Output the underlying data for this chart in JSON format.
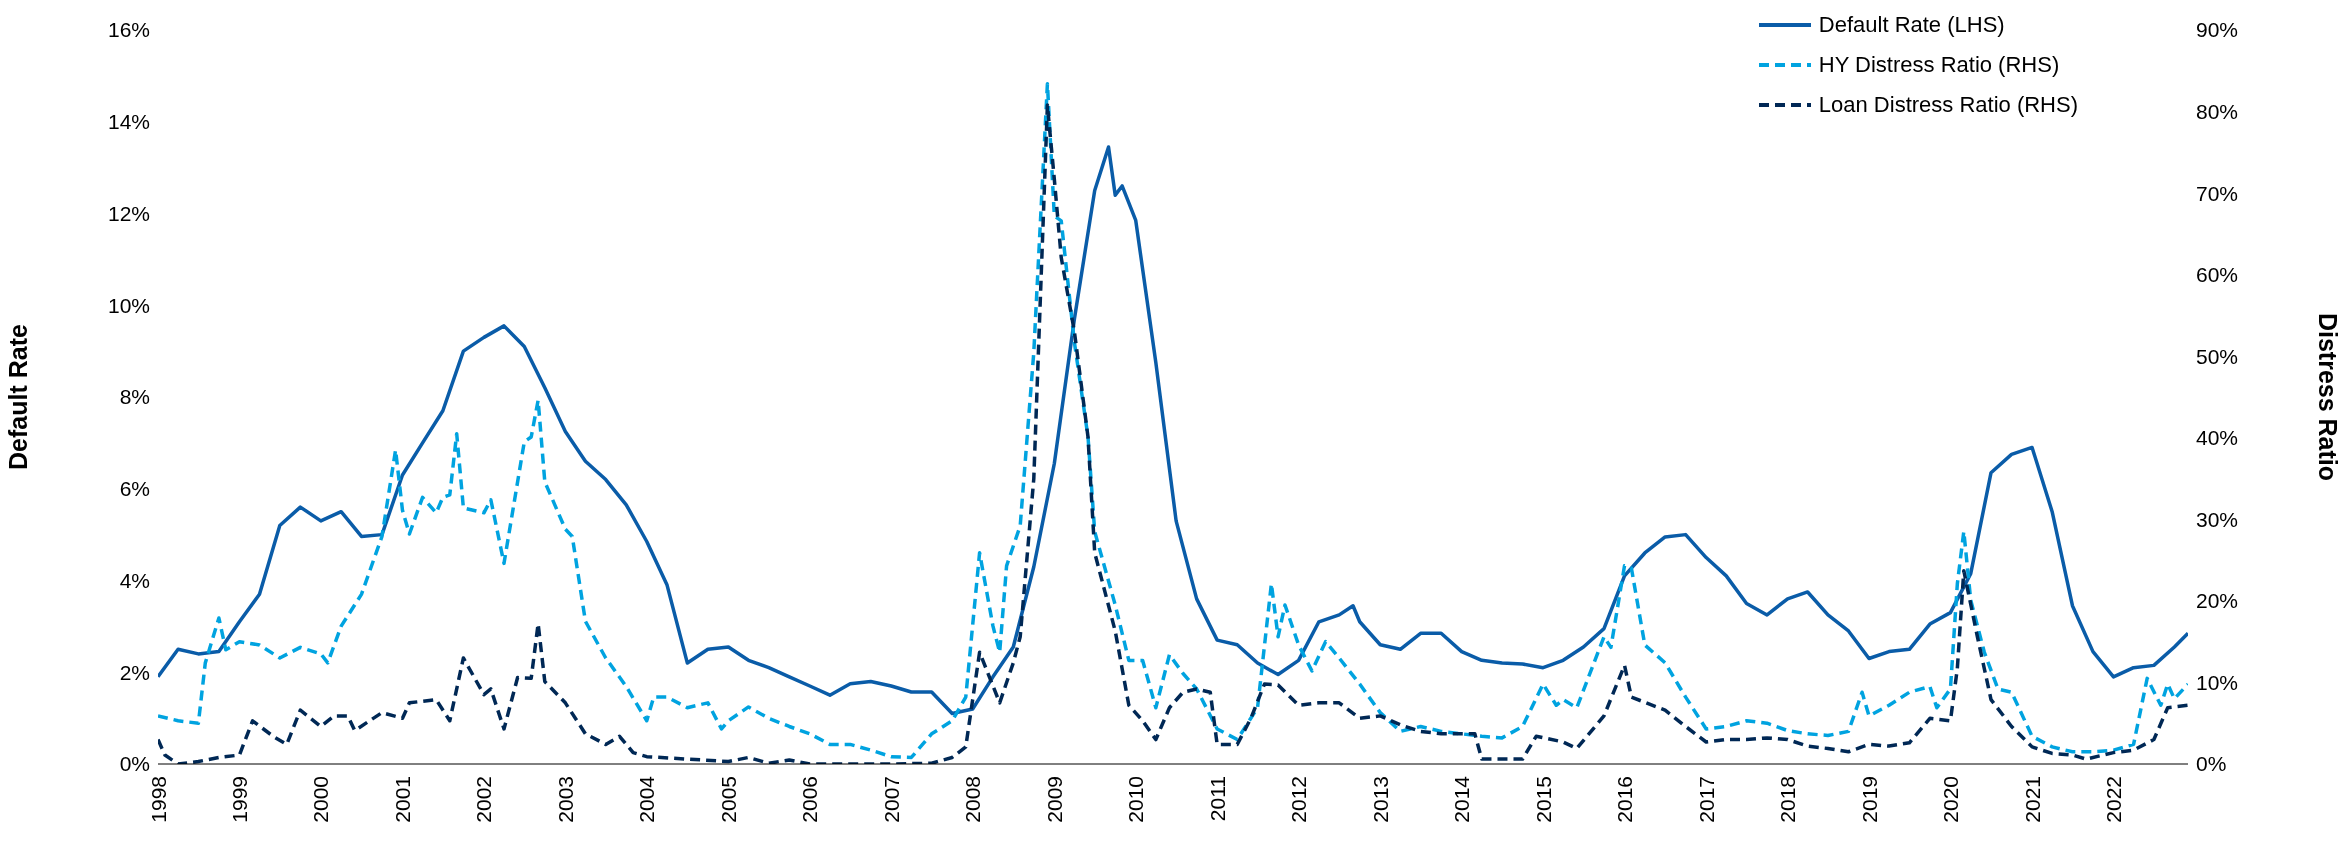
{
  "chart_data": {
    "type": "line",
    "ylabel": "Default Rate",
    "y2label": "Distress Ratio",
    "legend": "top right",
    "xlim": [
      "1998-01",
      "2022-12"
    ],
    "xticks": [
      "1998",
      "1999",
      "2000",
      "2001",
      "2002",
      "2003",
      "2004",
      "2005",
      "2006",
      "2007",
      "2008",
      "2009",
      "2010",
      "2011",
      "2012",
      "2013",
      "2014",
      "2015",
      "2016",
      "2017",
      "2018",
      "2019",
      "2020",
      "2021",
      "2022"
    ],
    "ylim": [
      0,
      16
    ],
    "yticks": [
      {
        "value": 0,
        "label": "0%"
      },
      {
        "value": 2,
        "label": "2%"
      },
      {
        "value": 4,
        "label": "4%"
      },
      {
        "value": 6,
        "label": "6%"
      },
      {
        "value": 8,
        "label": "8%"
      },
      {
        "value": 10,
        "label": "10%"
      },
      {
        "value": 12,
        "label": "12%"
      },
      {
        "value": 14,
        "label": "14%"
      },
      {
        "value": 16,
        "label": "16%"
      }
    ],
    "y2lim": [
      0,
      90
    ],
    "y2ticks": [
      {
        "value": 0,
        "label": "0%"
      },
      {
        "value": 10,
        "label": "10%"
      },
      {
        "value": 20,
        "label": "20%"
      },
      {
        "value": 30,
        "label": "30%"
      },
      {
        "value": 40,
        "label": "40%"
      },
      {
        "value": 50,
        "label": "50%"
      },
      {
        "value": 60,
        "label": "60%"
      },
      {
        "value": 70,
        "label": "70%"
      },
      {
        "value": 80,
        "label": "80%"
      },
      {
        "value": 90,
        "label": "90%"
      }
    ],
    "series": [
      {
        "name": "Default Rate (LHS)",
        "color": "#0a5ca8",
        "line_style": "solid",
        "x": [
          "1998-01",
          "1998-04",
          "1998-07",
          "1998-10",
          "1999-01",
          "1999-04",
          "1999-07",
          "1999-10",
          "2000-01",
          "2000-04",
          "2000-07",
          "2000-10",
          "2001-01",
          "2001-04",
          "2001-07",
          "2001-10",
          "2002-01",
          "2002-04",
          "2002-07",
          "2002-10",
          "2003-01",
          "2003-04",
          "2003-07",
          "2003-10",
          "2004-01",
          "2004-04",
          "2004-07",
          "2004-10",
          "2005-01",
          "2005-04",
          "2005-07",
          "2005-10",
          "2006-01",
          "2006-04",
          "2006-07",
          "2006-10",
          "2007-01",
          "2007-04",
          "2007-07",
          "2007-10",
          "2008-01",
          "2008-04",
          "2008-07",
          "2008-10",
          "2009-01",
          "2009-04",
          "2009-07",
          "2009-09",
          "2009-10",
          "2009-11",
          "2010-01",
          "2010-04",
          "2010-07",
          "2010-10",
          "2011-01",
          "2011-04",
          "2011-07",
          "2011-10",
          "2012-01",
          "2012-04",
          "2012-07",
          "2012-09",
          "2012-10",
          "2013-01",
          "2013-04",
          "2013-07",
          "2013-10",
          "2014-01",
          "2014-04",
          "2014-07",
          "2014-10",
          "2015-01",
          "2015-04",
          "2015-07",
          "2015-10",
          "2016-01",
          "2016-04",
          "2016-07",
          "2016-10",
          "2017-01",
          "2017-04",
          "2017-07",
          "2017-10",
          "2018-01",
          "2018-04",
          "2018-07",
          "2018-10",
          "2019-01",
          "2019-04",
          "2019-07",
          "2019-10",
          "2020-01",
          "2020-04",
          "2020-07",
          "2020-10",
          "2021-01",
          "2021-04",
          "2021-07",
          "2021-10",
          "2022-01",
          "2022-04",
          "2022-07",
          "2022-10",
          "2022-12"
        ],
        "values": [
          1.9,
          2.5,
          2.4,
          2.45,
          3.1,
          3.7,
          5.2,
          5.6,
          5.3,
          5.5,
          4.96,
          5.0,
          6.3,
          7.0,
          7.7,
          9.0,
          9.3,
          9.55,
          9.1,
          8.2,
          7.25,
          6.6,
          6.2,
          5.65,
          4.85,
          3.9,
          2.2,
          2.5,
          2.55,
          2.26,
          2.1,
          1.9,
          1.7,
          1.5,
          1.75,
          1.8,
          1.7,
          1.57,
          1.57,
          1.1,
          1.2,
          1.9,
          2.55,
          4.3,
          6.55,
          9.7,
          12.5,
          13.45,
          12.4,
          12.6,
          11.85,
          8.75,
          5.3,
          3.6,
          2.7,
          2.6,
          2.2,
          1.95,
          2.26,
          3.1,
          3.25,
          3.45,
          3.1,
          2.6,
          2.5,
          2.85,
          2.85,
          2.45,
          2.26,
          2.2,
          2.18,
          2.1,
          2.26,
          2.55,
          2.95,
          4.1,
          4.6,
          4.95,
          5.0,
          4.5,
          4.1,
          3.5,
          3.25,
          3.6,
          3.75,
          3.25,
          2.9,
          2.3,
          2.45,
          2.5,
          3.05,
          3.3,
          4.15,
          6.35,
          6.75,
          6.9,
          5.5,
          3.45,
          2.45,
          1.9,
          2.1,
          2.15,
          2.55,
          2.85
        ]
      },
      {
        "name": "HY Distress Ratio (RHS)",
        "color": "#00a3e0",
        "line_style": "dashed",
        "axis": "y2",
        "x": [
          "1998-01",
          "1998-04",
          "1998-07",
          "1998-08",
          "1998-10",
          "1998-11",
          "1999-01",
          "1999-04",
          "1999-07",
          "1999-10",
          "2000-01",
          "2000-02",
          "2000-04",
          "2000-07",
          "2000-10",
          "2000-12",
          "2001-01",
          "2001-02",
          "2001-04",
          "2001-06",
          "2001-07",
          "2001-08",
          "2001-09",
          "2001-10",
          "2002-01",
          "2002-02",
          "2002-04",
          "2002-07",
          "2002-08",
          "2002-09",
          "2002-10",
          "2003-01",
          "2003-02",
          "2003-04",
          "2003-07",
          "2003-10",
          "2004-01",
          "2004-02",
          "2004-04",
          "2004-07",
          "2004-10",
          "2004-12",
          "2005-01",
          "2005-04",
          "2005-07",
          "2005-10",
          "2006-01",
          "2006-04",
          "2006-07",
          "2006-10",
          "2007-01",
          "2007-04",
          "2007-07",
          "2007-10",
          "2007-12",
          "2008-02",
          "2008-04",
          "2008-05",
          "2008-06",
          "2008-08",
          "2008-10",
          "2008-12",
          "2009-01",
          "2009-02",
          "2009-04",
          "2009-06",
          "2009-07",
          "2009-10",
          "2009-12",
          "2010-02",
          "2010-04",
          "2010-06",
          "2010-08",
          "2010-10",
          "2011-01",
          "2011-04",
          "2011-07",
          "2011-09",
          "2011-10",
          "2011-11",
          "2012-01",
          "2012-03",
          "2012-05",
          "2012-07",
          "2012-10",
          "2013-01",
          "2013-04",
          "2013-07",
          "2013-10",
          "2014-01",
          "2014-04",
          "2014-07",
          "2014-10",
          "2015-01",
          "2015-03",
          "2015-04",
          "2015-06",
          "2015-10",
          "2015-11",
          "2016-01",
          "2016-02",
          "2016-04",
          "2016-07",
          "2016-10",
          "2017-01",
          "2017-04",
          "2017-07",
          "2017-10",
          "2018-01",
          "2018-04",
          "2018-07",
          "2018-10",
          "2018-12",
          "2019-01",
          "2019-04",
          "2019-07",
          "2019-10",
          "2019-11",
          "2020-01",
          "2020-02",
          "2020-03",
          "2020-04",
          "2020-06",
          "2020-08",
          "2020-10",
          "2021-01",
          "2021-04",
          "2021-07",
          "2021-10",
          "2022-01",
          "2022-04",
          "2022-06",
          "2022-08",
          "2022-09",
          "2022-10",
          "2022-12"
        ],
        "values": [
          5.9,
          5.3,
          5.0,
          12.4,
          17.9,
          14.0,
          15.0,
          14.6,
          13.0,
          14.3,
          13.5,
          12.4,
          16.9,
          20.8,
          27.9,
          38.5,
          31.1,
          28.2,
          32.7,
          30.8,
          32.7,
          33.0,
          40.5,
          31.4,
          30.8,
          32.4,
          24.6,
          39.5,
          40.1,
          44.6,
          34.6,
          28.8,
          27.9,
          17.5,
          13.0,
          9.5,
          5.3,
          8.2,
          8.2,
          6.9,
          7.5,
          4.3,
          5.3,
          7.0,
          5.6,
          4.6,
          3.7,
          2.4,
          2.4,
          1.7,
          0.9,
          0.8,
          3.7,
          5.3,
          8.2,
          25.9,
          16.9,
          13.7,
          24.3,
          29.2,
          50.5,
          83.4,
          67.2,
          66.6,
          51.7,
          40.1,
          28.5,
          19.5,
          12.7,
          12.7,
          6.9,
          13.4,
          11.1,
          9.2,
          4.3,
          3.0,
          6.9,
          22.1,
          15.6,
          19.5,
          14.6,
          11.4,
          15.0,
          13.0,
          9.8,
          6.3,
          4.0,
          4.6,
          4.0,
          3.7,
          3.4,
          3.2,
          4.6,
          9.8,
          7.2,
          7.9,
          6.9,
          15.6,
          14.3,
          24.3,
          24.0,
          14.6,
          12.4,
          8.2,
          4.3,
          4.6,
          5.3,
          5.0,
          4.1,
          3.7,
          3.5,
          4.0,
          8.8,
          5.9,
          7.2,
          8.8,
          9.5,
          6.9,
          9.2,
          22.1,
          28.5,
          20.1,
          13.7,
          9.2,
          8.8,
          3.4,
          2.1,
          1.5,
          1.5,
          1.7,
          2.4,
          10.5,
          7.2,
          9.8,
          8.0,
          9.8
        ]
      },
      {
        "name": "Loan Distress Ratio (RHS)",
        "color": "#002855",
        "line_style": "dashed",
        "axis": "y2",
        "x": [
          "1998-01",
          "1998-02",
          "1998-04",
          "1998-07",
          "1998-10",
          "1999-01",
          "1999-03",
          "1999-06",
          "1999-08",
          "1999-10",
          "2000-01",
          "2000-03",
          "2000-05",
          "2000-06",
          "2000-10",
          "2001-01",
          "2001-02",
          "2001-06",
          "2001-08",
          "2001-10",
          "2002-01",
          "2002-02",
          "2002-04",
          "2002-06",
          "2002-08",
          "2002-09",
          "2002-10",
          "2003-01",
          "2003-04",
          "2003-07",
          "2003-09",
          "2003-11",
          "2004-01",
          "2004-07",
          "2005-01",
          "2005-04",
          "2005-07",
          "2005-10",
          "2006-01",
          "2007-01",
          "2007-07",
          "2007-10",
          "2007-12",
          "2008-02",
          "2008-05",
          "2008-07",
          "2008-08",
          "2008-10",
          "2008-12",
          "2009-01",
          "2009-02",
          "2009-04",
          "2009-06",
          "2009-07",
          "2009-10",
          "2009-12",
          "2010-02",
          "2010-04",
          "2010-06",
          "2010-08",
          "2010-10",
          "2010-12",
          "2011-01",
          "2011-04",
          "2011-06",
          "2011-08",
          "2011-10",
          "2012-01",
          "2012-04",
          "2012-07",
          "2012-10",
          "2013-01",
          "2013-04",
          "2013-07",
          "2013-10",
          "2014-01",
          "2014-03",
          "2014-04",
          "2014-07",
          "2014-10",
          "2014-12",
          "2015-04",
          "2015-06",
          "2015-10",
          "2016-01",
          "2016-02",
          "2016-07",
          "2016-10",
          "2017-01",
          "2017-04",
          "2017-07",
          "2017-10",
          "2018-01",
          "2018-04",
          "2018-07",
          "2018-10",
          "2019-01",
          "2019-04",
          "2019-07",
          "2019-10",
          "2020-01",
          "2020-02",
          "2020-03",
          "2020-05",
          "2020-07",
          "2020-10",
          "2021-01",
          "2021-04",
          "2021-07",
          "2021-09",
          "2022-01",
          "2022-04",
          "2022-07",
          "2022-09",
          "2022-12"
        ],
        "values": [
          3.0,
          1.1,
          0,
          0.3,
          0.8,
          1.1,
          5.3,
          3.4,
          2.4,
          6.6,
          4.6,
          5.9,
          5.9,
          4.1,
          6.3,
          5.6,
          7.5,
          7.9,
          5.3,
          13.0,
          8.5,
          9.2,
          4.3,
          10.6,
          10.5,
          17.2,
          10.1,
          7.5,
          3.7,
          2.4,
          3.4,
          1.4,
          0.9,
          0.6,
          0.3,
          0.8,
          0.1,
          0.5,
          0,
          0,
          0.1,
          0.8,
          2.1,
          13.7,
          7.5,
          12.4,
          15.6,
          35.0,
          80.8,
          71.7,
          62.1,
          53.0,
          40.1,
          25.9,
          16.3,
          7.2,
          5.3,
          3.0,
          6.9,
          8.8,
          9.2,
          8.8,
          2.4,
          2.4,
          5.6,
          9.8,
          9.7,
          7.2,
          7.5,
          7.5,
          5.6,
          5.9,
          4.8,
          4.0,
          3.7,
          3.7,
          3.7,
          0.6,
          0.6,
          0.6,
          3.4,
          2.7,
          1.9,
          5.9,
          12.1,
          8.2,
          6.6,
          4.6,
          2.7,
          3.0,
          3.0,
          3.2,
          3.0,
          2.2,
          1.9,
          1.5,
          2.4,
          2.2,
          2.6,
          5.6,
          5.3,
          11.7,
          23.7,
          15.6,
          7.9,
          4.6,
          2.1,
          1.3,
          1.1,
          0.6,
          1.4,
          1.7,
          3.0,
          6.9,
          7.2
        ]
      }
    ]
  }
}
